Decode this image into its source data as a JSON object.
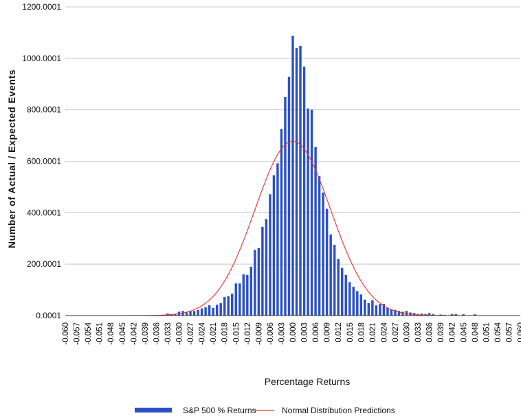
{
  "chart_data": {
    "type": "bar",
    "xlabel": "Percentage Returns",
    "ylabel": "Number of Actual / Expected Events",
    "ylim": [
      0.0001,
      1200.0001
    ],
    "y_ticks": [
      "0.0001",
      "200.0001",
      "400.0001",
      "600.0001",
      "800.0001",
      "1000.0001",
      "1200.0001"
    ],
    "x_tick_labels": [
      "-0.060",
      "-0.057",
      "-0.054",
      "-0.051",
      "-0.048",
      "-0.045",
      "-0.042",
      "-0.039",
      "-0.036",
      "-0.033",
      "-0.030",
      "-0.027",
      "-0.024",
      "-0.021",
      "-0.018",
      "-0.015",
      "-0.012",
      "-0.009",
      "-0.006",
      "-0.003",
      "0.000",
      "0.003",
      "0.006",
      "0.009",
      "0.012",
      "0.015",
      "0.018",
      "0.021",
      "0.024",
      "0.027",
      "0.030",
      "0.033",
      "0.036",
      "0.039",
      "0.042",
      "0.045",
      "0.048",
      "0.051",
      "0.054",
      "0.057",
      "0.060"
    ],
    "xlim": [
      -0.06,
      0.06
    ],
    "grid": true,
    "legend_position": "bottom",
    "series": [
      {
        "name": "S&P 500 % Returns",
        "type": "bar",
        "color": "#2a4fc8",
        "bin_width": 0.001,
        "x": [
          -0.033,
          -0.032,
          -0.031,
          -0.03,
          -0.029,
          -0.028,
          -0.027,
          -0.026,
          -0.025,
          -0.024,
          -0.023,
          -0.022,
          -0.021,
          -0.02,
          -0.019,
          -0.018,
          -0.017,
          -0.016,
          -0.015,
          -0.014,
          -0.013,
          -0.012,
          -0.011,
          -0.01,
          -0.009,
          -0.008,
          -0.007,
          -0.006,
          -0.005,
          -0.004,
          -0.003,
          -0.002,
          -0.001,
          0.0,
          0.001,
          0.002,
          0.003,
          0.004,
          0.005,
          0.006,
          0.007,
          0.008,
          0.009,
          0.01,
          0.011,
          0.012,
          0.013,
          0.014,
          0.015,
          0.016,
          0.017,
          0.018,
          0.019,
          0.02,
          0.021,
          0.022,
          0.023,
          0.024,
          0.025,
          0.026,
          0.027,
          0.028,
          0.029,
          0.03,
          0.031,
          0.032,
          0.033,
          0.034,
          0.035,
          0.036,
          0.037,
          0.039,
          0.04,
          0.042,
          0.043,
          0.045,
          0.048
        ],
        "values": [
          8,
          4,
          6,
          15,
          18,
          12,
          16,
          18,
          22,
          28,
          32,
          40,
          30,
          42,
          48,
          72,
          75,
          85,
          125,
          125,
          160,
          158,
          190,
          255,
          262,
          345,
          375,
          472,
          545,
          592,
          725,
          850,
          928,
          1088,
          1040,
          1048,
          968,
          805,
          800,
          655,
          542,
          478,
          415,
          315,
          275,
          220,
          185,
          158,
          130,
          112,
          95,
          82,
          62,
          48,
          60,
          40,
          45,
          45,
          30,
          25,
          22,
          18,
          15,
          18,
          12,
          10,
          6,
          8,
          6,
          10,
          6,
          4,
          3,
          6,
          6,
          5,
          5
        ]
      },
      {
        "name": "Normal Distribution Predictions",
        "type": "line",
        "color": "#e8302a",
        "peak": 678,
        "mean": 0.0,
        "std": 0.01
      }
    ]
  }
}
